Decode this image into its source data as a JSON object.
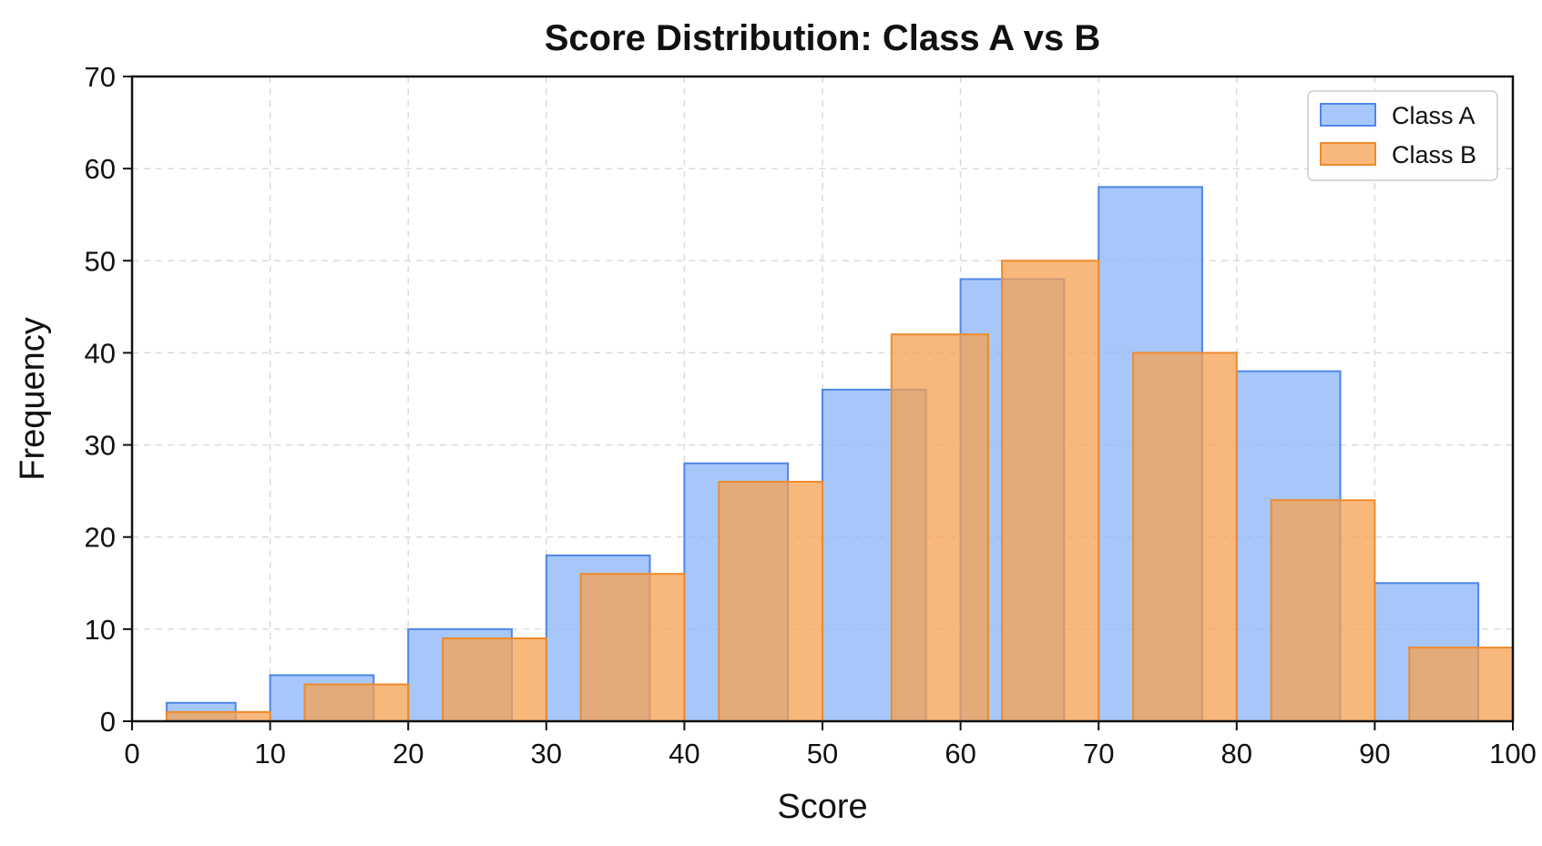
{
  "chart_data": {
    "type": "bar",
    "title": "Score Distribution: Class A vs B",
    "xlabel": "Score",
    "ylabel": "Frequency",
    "xlim": [
      0,
      100
    ],
    "ylim": [
      0,
      70
    ],
    "xticks": [
      0,
      10,
      20,
      30,
      40,
      50,
      60,
      70,
      80,
      90,
      100
    ],
    "yticks": [
      0,
      10,
      20,
      30,
      40,
      50,
      60,
      70
    ],
    "grid": true,
    "legend_position": "top-right",
    "series": [
      {
        "name": "Class A",
        "color": "#8ab4f8",
        "edge_color": "#4f86e8",
        "bars": [
          {
            "x0": 2.5,
            "x1": 7.5,
            "value": 2
          },
          {
            "x0": 10,
            "x1": 17.5,
            "value": 5
          },
          {
            "x0": 20,
            "x1": 27.5,
            "value": 10
          },
          {
            "x0": 30,
            "x1": 37.5,
            "value": 18
          },
          {
            "x0": 40,
            "x1": 47.5,
            "value": 28
          },
          {
            "x0": 50,
            "x1": 57.5,
            "value": 36
          },
          {
            "x0": 60,
            "x1": 67.5,
            "value": 48
          },
          {
            "x0": 70,
            "x1": 77.5,
            "value": 58
          },
          {
            "x0": 80,
            "x1": 87.5,
            "value": 38
          },
          {
            "x0": 90,
            "x1": 97.5,
            "value": 15
          }
        ]
      },
      {
        "name": "Class B",
        "color": "#f7a04f",
        "edge_color": "#ee8a2c",
        "bars": [
          {
            "x0": 2.5,
            "x1": 10,
            "value": 1
          },
          {
            "x0": 12.5,
            "x1": 20,
            "value": 4
          },
          {
            "x0": 22.5,
            "x1": 30,
            "value": 9
          },
          {
            "x0": 32.5,
            "x1": 40,
            "value": 16
          },
          {
            "x0": 42.5,
            "x1": 50,
            "value": 26
          },
          {
            "x0": 55,
            "x1": 62,
            "value": 42
          },
          {
            "x0": 63,
            "x1": 70,
            "value": 50
          },
          {
            "x0": 72.5,
            "x1": 80,
            "value": 40
          },
          {
            "x0": 82.5,
            "x1": 90,
            "value": 24
          },
          {
            "x0": 92.5,
            "x1": 100,
            "value": 8
          }
        ]
      }
    ]
  }
}
